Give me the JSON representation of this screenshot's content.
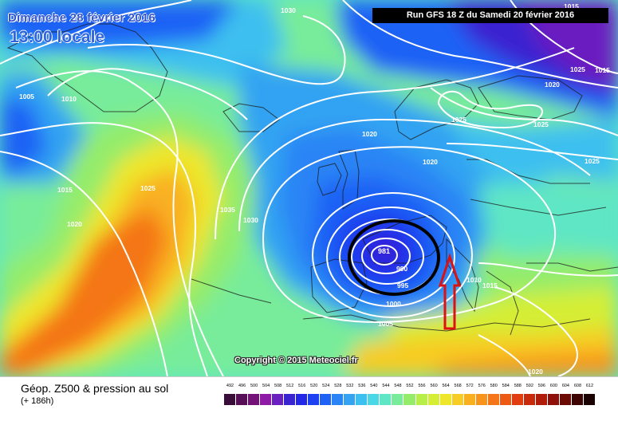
{
  "header": {
    "date_title": "Dimanche 28 février 2016",
    "time_title": "13:00 locale",
    "run_title": "Run GFS 18 Z du Samedi 20 février 2016"
  },
  "copyright": "Copyright © 2015 Meteociel.fr",
  "footer": {
    "field_title": "Géop. Z500 & pression au sol",
    "lead_time": "(+ 186h)"
  },
  "legend": {
    "values": [
      "492",
      "496",
      "500",
      "504",
      "508",
      "512",
      "516",
      "520",
      "524",
      "528",
      "532",
      "536",
      "540",
      "544",
      "548",
      "552",
      "556",
      "560",
      "564",
      "568",
      "572",
      "576",
      "580",
      "584",
      "588",
      "592",
      "596",
      "600",
      "604",
      "608",
      "612"
    ],
    "colors": [
      "#3a0c3a",
      "#560e56",
      "#74127a",
      "#8f1aa6",
      "#6a1fc0",
      "#3a24d0",
      "#2228e6",
      "#1d41f0",
      "#1f62f5",
      "#2a84f5",
      "#33a3f2",
      "#3cc0ef",
      "#4ad8e6",
      "#5fe6c4",
      "#78ec9a",
      "#94ec6a",
      "#b7ee48",
      "#d5ee34",
      "#eee62a",
      "#f7cc24",
      "#f9b020",
      "#f8941c",
      "#f47618",
      "#ec5a14",
      "#e03e10",
      "#c92a0c",
      "#b01c0a",
      "#8e1008",
      "#6c0a06",
      "#3e0404",
      "#1a0202"
    ]
  },
  "pressure_labels": [
    "1030",
    "1025",
    "1020",
    "1015",
    "1005",
    "1010",
    "1025",
    "1035",
    "1030",
    "1015",
    "1020",
    "1025",
    "1020",
    "1025",
    "1020",
    "1015",
    "1025",
    "1005",
    "1000",
    "995",
    "990",
    "1010",
    "1015",
    "1020"
  ],
  "low_center_label": "981",
  "colors": {
    "isobar": "#ffffff",
    "circle_annotation": "#000000",
    "arrow_annotation": "#dd1111"
  },
  "annotations": [
    "black-circle-around-low",
    "red-arrow-pointing-up"
  ]
}
